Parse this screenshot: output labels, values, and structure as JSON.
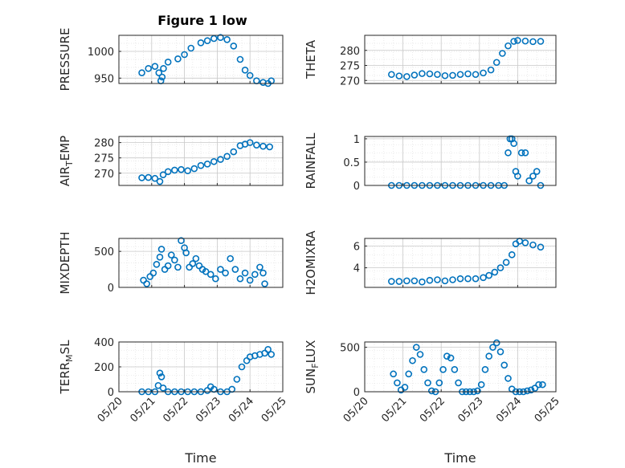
{
  "figure": {
    "title": "Figure 1 low",
    "marker_color": "#0072BD",
    "grid_color": "#c8c8c8",
    "axes_color": "#262626"
  },
  "chart_data": [
    {
      "type": "scatter",
      "id": "pressure",
      "ylabel": "PRESSURE",
      "title": "Figure 1 low",
      "xlim": [
        20,
        25
      ],
      "ylim": [
        940,
        1030
      ],
      "yticks": [
        950,
        1000
      ],
      "yticklabels": [
        "950",
        "1000"
      ],
      "xticks": [
        20,
        21,
        22,
        23,
        24,
        25
      ],
      "xticklabels": [],
      "x": [
        20.7,
        20.9,
        21.1,
        21.22,
        21.28,
        21.32,
        21.36,
        21.5,
        21.8,
        22.0,
        22.2,
        22.5,
        22.7,
        22.9,
        23.1,
        23.3,
        23.5,
        23.7,
        23.85,
        24.0,
        24.2,
        24.4,
        24.55,
        24.65
      ],
      "y": [
        960,
        968,
        972,
        960,
        945,
        952,
        968,
        980,
        986,
        994,
        1006,
        1016,
        1020,
        1024,
        1026,
        1022,
        1010,
        985,
        965,
        955,
        945,
        942,
        940,
        945
      ]
    },
    {
      "type": "scatter",
      "id": "theta",
      "ylabel": "THETA",
      "xlim": [
        20,
        25
      ],
      "ylim": [
        269,
        285
      ],
      "yticks": [
        270,
        275,
        280
      ],
      "yticklabels": [
        "270",
        "275",
        "280"
      ],
      "xticks": [
        20,
        21,
        22,
        23,
        24,
        25
      ],
      "xticklabels": [],
      "x": [
        20.7,
        20.9,
        21.1,
        21.3,
        21.5,
        21.7,
        21.9,
        22.1,
        22.3,
        22.5,
        22.7,
        22.9,
        23.1,
        23.3,
        23.45,
        23.6,
        23.75,
        23.9,
        24.0,
        24.2,
        24.4,
        24.6
      ],
      "y": [
        272,
        271.5,
        271.3,
        271.8,
        272.3,
        272.2,
        272.0,
        271.6,
        271.7,
        272.0,
        272.2,
        272.0,
        272.5,
        273.5,
        276,
        279,
        281.5,
        283,
        283.3,
        283.1,
        282.9,
        283.0
      ]
    },
    {
      "type": "scatter",
      "id": "air_temp",
      "ylabel": "AIR_TEMP",
      "xlim": [
        20,
        25
      ],
      "ylim": [
        266,
        282
      ],
      "yticks": [
        270,
        275,
        280
      ],
      "yticklabels": [
        "270",
        "275",
        "280"
      ],
      "xticks": [
        20,
        21,
        22,
        23,
        24,
        25
      ],
      "xticklabels": [],
      "x": [
        20.7,
        20.9,
        21.1,
        21.25,
        21.35,
        21.5,
        21.7,
        21.9,
        22.1,
        22.3,
        22.5,
        22.7,
        22.9,
        23.1,
        23.3,
        23.5,
        23.7,
        23.85,
        24.0,
        24.2,
        24.4,
        24.6
      ],
      "y": [
        268.5,
        268.6,
        268.3,
        267.3,
        269.5,
        270.5,
        271.0,
        271.2,
        270.8,
        271.5,
        272.5,
        273.0,
        273.8,
        274.5,
        275.5,
        277.0,
        279.0,
        279.5,
        280.0,
        279.2,
        278.8,
        278.6
      ]
    },
    {
      "type": "scatter",
      "id": "rainfall",
      "ylabel": "RAINFALL",
      "xlim": [
        20,
        25
      ],
      "ylim": [
        0,
        1.05
      ],
      "yticks": [
        0,
        0.5,
        1
      ],
      "yticklabels": [
        "0",
        "0.5",
        "1"
      ],
      "xticks": [
        20,
        21,
        22,
        23,
        24,
        25
      ],
      "xticklabels": [],
      "x": [
        20.7,
        20.9,
        21.1,
        21.3,
        21.5,
        21.7,
        21.9,
        22.1,
        22.3,
        22.5,
        22.7,
        22.9,
        23.1,
        23.3,
        23.5,
        23.65,
        23.75,
        23.8,
        23.85,
        23.9,
        23.95,
        24.0,
        24.1,
        24.2,
        24.3,
        24.4,
        24.5,
        24.6
      ],
      "y": [
        0,
        0,
        0,
        0,
        0,
        0,
        0,
        0,
        0,
        0,
        0,
        0,
        0,
        0,
        0,
        0,
        0.7,
        1.0,
        1.0,
        0.9,
        0.3,
        0.2,
        0.7,
        0.7,
        0.1,
        0.2,
        0.3,
        0
      ]
    },
    {
      "type": "scatter",
      "id": "mixdepth",
      "ylabel": "MIXDEPTH",
      "xlim": [
        20,
        25
      ],
      "ylim": [
        0,
        680
      ],
      "yticks": [
        0,
        500
      ],
      "yticklabels": [
        "0",
        "500"
      ],
      "xticks": [
        20,
        21,
        22,
        23,
        24,
        25
      ],
      "xticklabels": [],
      "x": [
        20.75,
        20.85,
        20.95,
        21.05,
        21.15,
        21.25,
        21.3,
        21.4,
        21.5,
        21.6,
        21.7,
        21.8,
        21.9,
        22.0,
        22.05,
        22.15,
        22.25,
        22.35,
        22.45,
        22.55,
        22.65,
        22.8,
        22.95,
        23.1,
        23.25,
        23.4,
        23.55,
        23.7,
        23.85,
        24.0,
        24.15,
        24.3,
        24.4,
        24.45
      ],
      "y": [
        100,
        50,
        150,
        200,
        320,
        420,
        530,
        250,
        300,
        450,
        380,
        280,
        650,
        550,
        480,
        280,
        330,
        400,
        300,
        250,
        220,
        180,
        120,
        250,
        200,
        400,
        250,
        120,
        200,
        100,
        180,
        280,
        200,
        50
      ]
    },
    {
      "type": "scatter",
      "id": "h2omixra",
      "ylabel": "H2OMIXRA",
      "xlim": [
        20,
        25
      ],
      "ylim": [
        2.2,
        6.7
      ],
      "yticks": [
        4,
        6
      ],
      "yticklabels": [
        "4",
        "6"
      ],
      "xticks": [
        20,
        21,
        22,
        23,
        24,
        25
      ],
      "xticklabels": [],
      "x": [
        20.7,
        20.9,
        21.1,
        21.3,
        21.5,
        21.7,
        21.9,
        22.1,
        22.3,
        22.5,
        22.7,
        22.9,
        23.1,
        23.25,
        23.4,
        23.55,
        23.7,
        23.85,
        23.95,
        24.05,
        24.2,
        24.4,
        24.6
      ],
      "y": [
        2.75,
        2.75,
        2.8,
        2.8,
        2.7,
        2.85,
        2.9,
        2.8,
        2.9,
        3.0,
        3.0,
        3.0,
        3.1,
        3.3,
        3.6,
        4.0,
        4.5,
        5.2,
        6.2,
        6.45,
        6.3,
        6.1,
        5.9
      ]
    },
    {
      "type": "scatter",
      "id": "terr_msl",
      "ylabel": "TERR_MSL",
      "xlim": [
        20,
        25
      ],
      "ylim": [
        0,
        400
      ],
      "yticks": [
        0,
        200,
        400
      ],
      "yticklabels": [
        "0",
        "200",
        "400"
      ],
      "xticks": [
        20,
        21,
        22,
        23,
        24,
        25
      ],
      "xticklabels": [
        "05/20",
        "05/21",
        "05/22",
        "05/23",
        "05/24",
        "05/25"
      ],
      "xlabel": "Time",
      "x": [
        20.7,
        20.9,
        21.1,
        21.2,
        21.25,
        21.3,
        21.35,
        21.5,
        21.7,
        21.9,
        22.1,
        22.3,
        22.5,
        22.7,
        22.8,
        22.9,
        23.1,
        23.3,
        23.45,
        23.6,
        23.75,
        23.9,
        24.0,
        24.15,
        24.3,
        24.45,
        24.55,
        24.65
      ],
      "y": [
        0,
        0,
        0,
        50,
        150,
        120,
        30,
        0,
        0,
        0,
        0,
        0,
        0,
        10,
        40,
        20,
        0,
        0,
        20,
        100,
        200,
        250,
        280,
        290,
        300,
        310,
        340,
        300
      ]
    },
    {
      "type": "scatter",
      "id": "sun_flux",
      "ylabel": "SUN_FLUX",
      "xlim": [
        20,
        25
      ],
      "ylim": [
        0,
        560
      ],
      "yticks": [
        0,
        500
      ],
      "yticklabels": [
        "0",
        "500"
      ],
      "xticks": [
        20,
        21,
        22,
        23,
        24,
        25
      ],
      "xticklabels": [
        "05/20",
        "05/21",
        "05/22",
        "05/23",
        "05/24",
        "05/25"
      ],
      "xlabel": "Time",
      "x": [
        20.75,
        20.85,
        20.95,
        21.05,
        21.15,
        21.25,
        21.35,
        21.45,
        21.55,
        21.65,
        21.75,
        21.85,
        21.95,
        22.05,
        22.15,
        22.25,
        22.35,
        22.45,
        22.55,
        22.65,
        22.75,
        22.85,
        22.95,
        23.05,
        23.15,
        23.25,
        23.35,
        23.45,
        23.55,
        23.65,
        23.75,
        23.85,
        23.95,
        24.05,
        24.15,
        24.25,
        24.35,
        24.45,
        24.55,
        24.65
      ],
      "y": [
        200,
        100,
        20,
        50,
        200,
        350,
        500,
        420,
        250,
        100,
        10,
        0,
        100,
        250,
        400,
        380,
        250,
        100,
        0,
        0,
        0,
        0,
        10,
        80,
        250,
        400,
        500,
        550,
        450,
        300,
        150,
        30,
        0,
        0,
        0,
        10,
        20,
        40,
        80,
        80
      ]
    }
  ]
}
